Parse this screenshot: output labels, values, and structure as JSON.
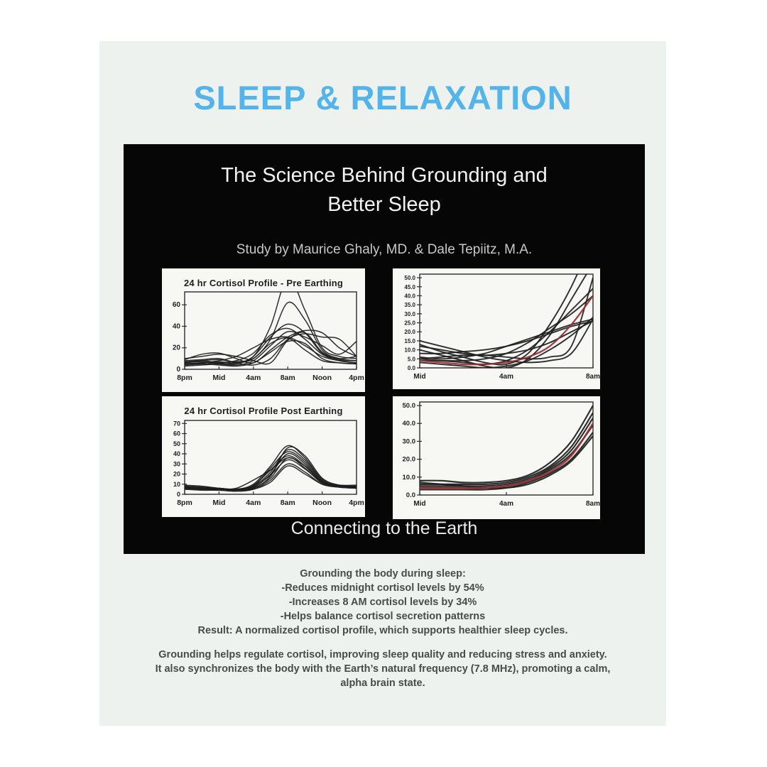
{
  "page": {
    "title": "SLEEP & RELAXATION"
  },
  "panel": {
    "heading_line1": "The Science Behind Grounding and",
    "heading_line2": "Better Sleep",
    "subtitle": "Study by Maurice Ghaly, MD. & Dale Tepiitz, M.A.",
    "caption": "Connecting to the Earth"
  },
  "body": {
    "block1": [
      "Grounding the body during sleep:",
      "-Reduces midnight cortisol levels by 54%",
      "-Increases 8 AM cortisol levels by 34%",
      "-Helps balance cortisol secretion patterns",
      "Result: A normalized cortisol profile, which supports healthier sleep cycles."
    ],
    "block2": [
      "Grounding helps regulate cortisol, improving sleep quality and reducing stress and anxiety.",
      "It also synchronizes the body with the Earth’s natural frequency (7.8 MHz), promoting a calm,",
      "alpha brain state."
    ]
  },
  "colors": {
    "accent_blue": "#54b3e9",
    "card_bg": "#edf2ee",
    "panel_bg": "#060606",
    "chart_bg": "#f7f7f4",
    "line_black": "#1d1d1d",
    "red_line": "#993033",
    "body_text": "#474c4b"
  },
  "chart_data": [
    {
      "id": "cortisol-pre-earthing-24h",
      "type": "line",
      "title": "24 hr Cortisol Profile - Pre Earthing",
      "xlabel": "",
      "ylabel": "",
      "xlim": [
        0,
        20
      ],
      "ylim": [
        0,
        72
      ],
      "x_tick_values": [
        0,
        4,
        8,
        12,
        16,
        20
      ],
      "x_tick_labels": [
        "8pm",
        "Mid",
        "4am",
        "8am",
        "Noon",
        "4pm"
      ],
      "y_tick_values": [
        0,
        20,
        40,
        60
      ],
      "y_tick_labels": [
        "0",
        "20",
        "40",
        "60"
      ],
      "x_points": [
        0,
        2,
        4,
        6,
        8,
        10,
        12,
        14,
        16,
        18,
        20
      ],
      "legend": "off",
      "grid": "off",
      "series": [
        {
          "y": [
            6,
            8,
            9,
            7,
            12,
            40,
            85,
            55,
            20,
            12,
            10
          ]
        },
        {
          "y": [
            5,
            6,
            7,
            6,
            10,
            28,
            62,
            46,
            18,
            10,
            8
          ]
        },
        {
          "y": [
            7,
            8,
            6,
            5,
            12,
            30,
            42,
            34,
            15,
            10,
            12
          ]
        },
        {
          "y": [
            4,
            5,
            6,
            8,
            15,
            32,
            38,
            28,
            14,
            8,
            6
          ]
        },
        {
          "y": [
            9,
            14,
            15,
            10,
            6,
            18,
            30,
            36,
            34,
            20,
            12
          ]
        },
        {
          "y": [
            6,
            7,
            5,
            4,
            8,
            22,
            35,
            30,
            22,
            14,
            26
          ]
        },
        {
          "y": [
            5,
            6,
            8,
            12,
            20,
            28,
            30,
            22,
            12,
            8,
            6
          ]
        },
        {
          "y": [
            8,
            9,
            10,
            6,
            4,
            10,
            28,
            33,
            30,
            28,
            12
          ]
        },
        {
          "y": [
            3,
            4,
            5,
            6,
            10,
            24,
            29,
            18,
            8,
            6,
            5
          ]
        },
        {
          "y": [
            10,
            12,
            14,
            12,
            8,
            6,
            27,
            34,
            16,
            9,
            8
          ]
        },
        {
          "y": [
            5,
            5,
            4,
            3,
            6,
            16,
            26,
            24,
            10,
            6,
            5
          ]
        }
      ]
    },
    {
      "id": "cortisol-pre-earthing-night-zoom",
      "type": "line",
      "title": "",
      "xlabel": "",
      "ylabel": "",
      "xlim": [
        0,
        8
      ],
      "ylim": [
        0,
        52
      ],
      "x_tick_values": [
        0,
        4,
        8
      ],
      "x_tick_labels": [
        "Mid",
        "4am",
        "8am"
      ],
      "y_tick_values": [
        0,
        5,
        10,
        15,
        20,
        25,
        30,
        35,
        40,
        45,
        50
      ],
      "y_tick_labels": [
        "0.0",
        "5.0",
        "10.0",
        "15.0",
        "20.0",
        "25.0",
        "30.0",
        "35.0",
        "40.0",
        "45.0",
        "50.0"
      ],
      "x_points": [
        0,
        1,
        2,
        3,
        4,
        5,
        6,
        7,
        8
      ],
      "legend": "off",
      "grid": "off",
      "series": [
        {
          "y": [
            10,
            7,
            4,
            1,
            0,
            5,
            18,
            38,
            58
          ]
        },
        {
          "y": [
            13,
            9,
            6,
            3,
            2,
            8,
            24,
            45,
            72
          ]
        },
        {
          "y": [
            5,
            4,
            3,
            2,
            4,
            10,
            20,
            32,
            44
          ]
        },
        {
          "y": [
            4,
            4,
            4,
            5,
            8,
            14,
            22,
            30,
            40
          ]
        },
        {
          "y": [
            6,
            5,
            6,
            8,
            12,
            16,
            20,
            24,
            27
          ]
        },
        {
          "y": [
            12,
            10,
            8,
            7,
            8,
            10,
            14,
            20,
            26
          ]
        },
        {
          "y": [
            3,
            2,
            1,
            0,
            1,
            4,
            10,
            18,
            28
          ]
        },
        {
          "y": [
            8,
            8,
            9,
            10,
            12,
            15,
            19,
            23,
            26
          ]
        },
        {
          "y": [
            15,
            12,
            9,
            6,
            4,
            3,
            4,
            8,
            27
          ]
        },
        {
          "y": [
            5,
            6,
            7,
            7,
            6,
            5,
            6,
            12,
            50
          ]
        },
        {
          "color": "red",
          "y": [
            4,
            3,
            2,
            2,
            3,
            6,
            12,
            24,
            40
          ]
        }
      ]
    },
    {
      "id": "cortisol-post-earthing-24h",
      "type": "line",
      "title": "24 hr Cortisol Profile Post Earthing",
      "xlabel": "",
      "ylabel": "",
      "xlim": [
        0,
        20
      ],
      "ylim": [
        0,
        73
      ],
      "x_tick_values": [
        0,
        4,
        8,
        12,
        16,
        20
      ],
      "x_tick_labels": [
        "8pm",
        "Mid",
        "4am",
        "8am",
        "Noon",
        "4pm"
      ],
      "y_tick_values": [
        0,
        10,
        20,
        30,
        40,
        50,
        60,
        70
      ],
      "y_tick_labels": [
        "0",
        "10",
        "20",
        "30",
        "40",
        "50",
        "60",
        "70"
      ],
      "x_points": [
        0,
        2,
        4,
        6,
        8,
        10,
        12,
        14,
        16,
        18,
        20
      ],
      "legend": "off",
      "grid": "off",
      "series": [
        {
          "y": [
            6,
            5,
            5,
            4,
            6,
            18,
            46,
            38,
            16,
            9,
            8
          ]
        },
        {
          "y": [
            7,
            6,
            5,
            5,
            8,
            22,
            44,
            34,
            14,
            8,
            8
          ]
        },
        {
          "y": [
            5,
            5,
            4,
            4,
            7,
            20,
            40,
            30,
            12,
            8,
            7
          ]
        },
        {
          "y": [
            8,
            7,
            6,
            5,
            9,
            24,
            38,
            28,
            12,
            9,
            8
          ]
        },
        {
          "y": [
            6,
            6,
            5,
            4,
            6,
            16,
            36,
            26,
            11,
            8,
            7
          ]
        },
        {
          "y": [
            9,
            8,
            6,
            5,
            7,
            19,
            34,
            25,
            12,
            9,
            9
          ]
        },
        {
          "y": [
            5,
            4,
            4,
            3,
            5,
            14,
            30,
            22,
            10,
            7,
            6
          ]
        },
        {
          "y": [
            7,
            6,
            5,
            4,
            8,
            26,
            42,
            32,
            13,
            8,
            7
          ]
        },
        {
          "y": [
            6,
            5,
            5,
            4,
            5,
            12,
            28,
            20,
            10,
            7,
            6
          ]
        },
        {
          "y": [
            8,
            7,
            6,
            5,
            10,
            28,
            48,
            36,
            15,
            9,
            8
          ]
        },
        {
          "y": [
            6,
            6,
            5,
            6,
            14,
            24,
            36,
            28,
            13,
            9,
            8
          ]
        }
      ]
    },
    {
      "id": "cortisol-post-earthing-night-zoom",
      "type": "line",
      "title": "",
      "xlabel": "",
      "ylabel": "",
      "xlim": [
        0,
        8
      ],
      "ylim": [
        0,
        52
      ],
      "x_tick_values": [
        0,
        4,
        8
      ],
      "x_tick_labels": [
        "Mid",
        "4am",
        "8am"
      ],
      "y_tick_values": [
        0,
        10,
        20,
        30,
        40,
        50
      ],
      "y_tick_labels": [
        "0.0",
        "10.0",
        "20.0",
        "30.0",
        "40.0",
        "50.0"
      ],
      "x_points": [
        0,
        1,
        2,
        3,
        4,
        5,
        6,
        7,
        8
      ],
      "legend": "off",
      "grid": "off",
      "series": [
        {
          "y": [
            8,
            8,
            7,
            7,
            8,
            11,
            18,
            30,
            50
          ]
        },
        {
          "y": [
            6,
            6,
            6,
            6,
            7,
            10,
            16,
            27,
            46
          ]
        },
        {
          "y": [
            5,
            5,
            5,
            5,
            6,
            9,
            15,
            25,
            43
          ]
        },
        {
          "y": [
            4,
            4,
            4,
            4,
            5,
            8,
            14,
            23,
            39
          ]
        },
        {
          "y": [
            3,
            3,
            3,
            3,
            4,
            7,
            12,
            20,
            35
          ]
        },
        {
          "y": [
            7,
            6,
            5,
            4,
            4,
            6,
            11,
            19,
            33
          ]
        },
        {
          "color": "red",
          "y": [
            4,
            4,
            4,
            4,
            5,
            8,
            13,
            22,
            40
          ]
        }
      ]
    }
  ]
}
